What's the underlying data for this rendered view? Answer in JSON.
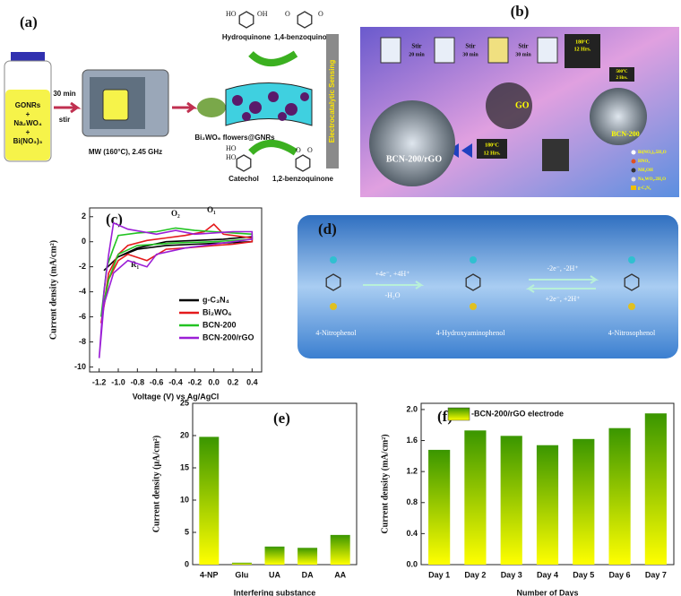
{
  "panels": {
    "a": {
      "label": "(a)",
      "precursors": [
        "GONRs",
        "+",
        "Na₂WO₄",
        "+",
        "Bi(NO₃)₃"
      ],
      "step1": [
        "30 min",
        "stir"
      ],
      "microwave": "MW (160°C), 2.45 GHz",
      "product": "Bi₂WO₆ flowers@GNRs",
      "molecules": [
        {
          "name": "Hydroquinone",
          "groups": [
            "HO",
            "OH"
          ]
        },
        {
          "name": "1,4-benzoquinone",
          "groups": [
            "O",
            "O"
          ]
        },
        {
          "name": "Catechol",
          "groups": [
            "HO",
            "HO"
          ]
        },
        {
          "name": "1,2-benzoquinone",
          "groups": [
            "O",
            "O"
          ]
        }
      ],
      "sensing": "Electrocatalytic Sensing"
    },
    "b": {
      "label": "(b)",
      "stir_steps": [
        {
          "text": "Stir",
          "time": "20 min"
        },
        {
          "text": "Stir",
          "time": "30 min"
        },
        {
          "text": "Stir",
          "time": "30 min"
        }
      ],
      "autoclave1": [
        "180°C",
        "12 Hrs."
      ],
      "furnace": [
        "500°C",
        "2 Hrs."
      ],
      "go": "GO",
      "bcn": "BCN-200",
      "autoclave2": [
        "180°C",
        "12 Hrs."
      ],
      "composite": "BCN-200/rGO",
      "legend": [
        "Bi(NO₃)₃.5H₂O",
        "HNO₃",
        "NH₄OH",
        "Na₂WO₄.2H₂O",
        "g-C₃N₄"
      ]
    },
    "d": {
      "label": "(d)",
      "step1": [
        "+4e⁻, +4H⁺",
        "-H₂O"
      ],
      "step2": [
        "-2e⁻, -2H⁺",
        "+2e⁻, +2H⁺"
      ],
      "compounds": [
        "4-Nitrophenol",
        "4-Hydroxyaminophenol",
        "4-Nitrosophenol"
      ]
    }
  },
  "chart_data": [
    {
      "type": "line",
      "title": "(c)",
      "xlabel": "Voltage (V) vs Ag/AgCl",
      "ylabel": "Current density (mA/cm²)",
      "xlim": [
        -1.3,
        0.5
      ],
      "xticks": [
        -1.2,
        {
          "value": -1.0,
          "label": "-1.0"
        },
        -0.8,
        -0.6,
        -0.4,
        -0.2,
        {
          "value": 0.0,
          "label": "0.0"
        },
        0.2,
        0.4
      ],
      "ylim": [
        -10.4,
        2.7
      ],
      "yticks": [
        -10,
        -8,
        -6,
        -4,
        -2,
        0,
        2
      ],
      "annotations": [
        "O₂",
        "O₁",
        "R₁"
      ],
      "series": [
        {
          "name": "g-C₃N₄",
          "color": "#000000",
          "x": [
            -1.15,
            -1.0,
            -0.8,
            -0.5,
            -0.2,
            0.1,
            0.4,
            0.4,
            0.1,
            -0.2,
            -0.5,
            -0.8,
            -1.0,
            -1.15
          ],
          "values": [
            -2.3,
            -1.2,
            -0.5,
            0.0,
            0.1,
            0.2,
            0.4,
            0.0,
            -0.1,
            -0.2,
            -0.3,
            -0.6,
            -1.2,
            -2.3
          ]
        },
        {
          "name": "Bi₂WO₆",
          "color": "#e41a1c",
          "x": [
            -1.18,
            -1.1,
            -1.0,
            -0.9,
            -0.7,
            -0.5,
            -0.3,
            -0.1,
            0.0,
            0.1,
            0.4,
            0.4,
            0.2,
            0.0,
            -0.3,
            -0.5,
            -0.7,
            -0.9,
            -1.0,
            -1.1,
            -1.18
          ],
          "values": [
            -6.5,
            -2.5,
            -1.0,
            -0.3,
            0.1,
            0.3,
            0.5,
            0.8,
            1.4,
            0.6,
            0.3,
            0.0,
            -0.2,
            -0.3,
            -0.5,
            -0.6,
            -1.5,
            -1.0,
            -1.5,
            -3.0,
            -6.5
          ]
        },
        {
          "name": "BCN-200",
          "color": "#22c322",
          "x": [
            -1.18,
            -1.12,
            -1.05,
            -1.0,
            -0.8,
            -0.6,
            -0.4,
            -0.2,
            0.0,
            0.2,
            0.4,
            0.4,
            0.2,
            0.0,
            -0.4,
            -0.8,
            -1.0,
            -1.1,
            -1.18
          ],
          "values": [
            -6.0,
            -2.0,
            -0.5,
            0.5,
            0.7,
            0.8,
            1.1,
            0.9,
            0.8,
            0.7,
            0.6,
            0.2,
            0.1,
            0.0,
            -0.1,
            -0.3,
            -1.0,
            -3.0,
            -6.0
          ]
        },
        {
          "name": "BCN-200/rGO",
          "color": "#9b1fd6",
          "x": [
            -1.2,
            -1.15,
            -1.1,
            -1.05,
            -0.9,
            -0.6,
            -0.4,
            -0.2,
            0.0,
            0.2,
            0.4,
            0.4,
            0.2,
            0.0,
            -0.3,
            -0.6,
            -0.7,
            -0.9,
            -1.05,
            -1.15,
            -1.2
          ],
          "values": [
            -9.3,
            -4.0,
            -1.0,
            1.5,
            1.0,
            0.6,
            0.9,
            0.6,
            0.7,
            0.8,
            0.8,
            0.2,
            0.0,
            -0.2,
            -0.5,
            -1.0,
            -2.0,
            -1.5,
            -2.5,
            -5.0,
            -9.3
          ]
        }
      ]
    },
    {
      "type": "bar",
      "title": "(e)",
      "xlabel": "Interfering substance",
      "ylabel": "Current density (μA/cm²)",
      "categories": [
        "4-NP",
        "Glu",
        "UA",
        "DA",
        "AA"
      ],
      "values": [
        19.8,
        0.3,
        2.8,
        2.6,
        4.6
      ],
      "ylim": [
        0,
        25
      ],
      "yticks": [
        0,
        5,
        10,
        15,
        20,
        25
      ],
      "gradient": [
        "#3a9600",
        "#ffff00"
      ]
    },
    {
      "type": "bar",
      "title": "(f)",
      "xlabel": "Number of Days",
      "ylabel": "Current density (mA/cm²)",
      "categories": [
        "Day 1",
        "Day 2",
        "Day 3",
        "Day 4",
        "Day 5",
        "Day 6",
        "Day 7"
      ],
      "series": [
        {
          "name": "-BCN-200/rGO electrode",
          "values": [
            1.48,
            1.73,
            1.66,
            1.54,
            1.62,
            1.76,
            1.95
          ]
        }
      ],
      "ylim": [
        0,
        2.08
      ],
      "yticks": [
        {
          "value": 0,
          "label": "0.0"
        },
        0.4,
        0.8,
        1.2,
        1.6,
        {
          "value": 2,
          "label": "2.0"
        }
      ],
      "gradient": [
        "#3a9600",
        "#ffff00"
      ]
    }
  ]
}
